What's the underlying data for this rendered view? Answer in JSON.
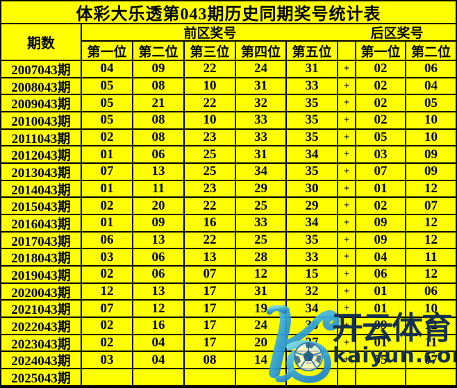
{
  "title": "体彩大乐透第043期历史同期奖号统计表",
  "colors": {
    "background": "#ffff00",
    "grid_border": "#000000",
    "text": "#000000",
    "watermark_navy": "#16314f",
    "watermark_blue_light": "#6fd4f0",
    "watermark_blue_dark": "#1f86d2"
  },
  "table": {
    "period_header": "期数",
    "front_zone_header": "前区奖号",
    "back_zone_header": "后区奖号",
    "front_position_headers": [
      "第一位",
      "第二位",
      "第三位",
      "第四位",
      "第五位"
    ],
    "back_position_headers": [
      "第一位",
      "第二位"
    ],
    "rows": [
      {
        "period": "2007043期",
        "front": [
          "04",
          "09",
          "22",
          "24",
          "31"
        ],
        "plus": "+",
        "back": [
          "02",
          "06"
        ]
      },
      {
        "period": "2008043期",
        "front": [
          "05",
          "08",
          "10",
          "31",
          "33"
        ],
        "plus": "+",
        "back": [
          "02",
          "04"
        ]
      },
      {
        "period": "2009043期",
        "front": [
          "05",
          "21",
          "22",
          "32",
          "35"
        ],
        "plus": "+",
        "back": [
          "02",
          "05"
        ]
      },
      {
        "period": "2010043期",
        "front": [
          "05",
          "08",
          "10",
          "33",
          "35"
        ],
        "plus": "+",
        "back": [
          "02",
          "10"
        ]
      },
      {
        "period": "2011043期",
        "front": [
          "02",
          "08",
          "23",
          "33",
          "35"
        ],
        "plus": "+",
        "back": [
          "05",
          "10"
        ]
      },
      {
        "period": "2012043期",
        "front": [
          "01",
          "06",
          "25",
          "31",
          "34"
        ],
        "plus": "+",
        "back": [
          "03",
          "09"
        ]
      },
      {
        "period": "2013043期",
        "front": [
          "07",
          "13",
          "25",
          "34",
          "35"
        ],
        "plus": "+",
        "back": [
          "07",
          "09"
        ]
      },
      {
        "period": "2014043期",
        "front": [
          "01",
          "11",
          "23",
          "29",
          "30"
        ],
        "plus": "+",
        "back": [
          "01",
          "12"
        ]
      },
      {
        "period": "2015043期",
        "front": [
          "02",
          "20",
          "22",
          "25",
          "29"
        ],
        "plus": "+",
        "back": [
          "02",
          "07"
        ]
      },
      {
        "period": "2016043期",
        "front": [
          "01",
          "09",
          "16",
          "33",
          "34"
        ],
        "plus": "+",
        "back": [
          "09",
          "12"
        ]
      },
      {
        "period": "2017043期",
        "front": [
          "06",
          "13",
          "22",
          "25",
          "35"
        ],
        "plus": "+",
        "back": [
          "09",
          "12"
        ]
      },
      {
        "period": "2018043期",
        "front": [
          "03",
          "06",
          "13",
          "28",
          "33"
        ],
        "plus": "+",
        "back": [
          "04",
          "11"
        ]
      },
      {
        "period": "2019043期",
        "front": [
          "02",
          "06",
          "07",
          "12",
          "15"
        ],
        "plus": "+",
        "back": [
          "06",
          "12"
        ]
      },
      {
        "period": "2020043期",
        "front": [
          "12",
          "13",
          "17",
          "31",
          "32"
        ],
        "plus": "+",
        "back": [
          "01",
          "06"
        ]
      },
      {
        "period": "2021043期",
        "front": [
          "07",
          "12",
          "17",
          "19",
          "34"
        ],
        "plus": "+",
        "back": [
          "01",
          "10"
        ]
      },
      {
        "period": "2022043期",
        "front": [
          "02",
          "16",
          "17",
          "24",
          "30"
        ],
        "plus": "+",
        "back": [
          "09",
          "12"
        ]
      },
      {
        "period": "2023043期",
        "front": [
          "02",
          "04",
          "17",
          "20",
          "27"
        ],
        "plus": "+",
        "back": [
          "01",
          "11"
        ]
      },
      {
        "period": "2024043期",
        "front": [
          "03",
          "04",
          "08",
          "14",
          "27"
        ],
        "plus": "+",
        "back": [
          "05",
          "07"
        ]
      },
      {
        "period": "2025043期",
        "front": [
          "",
          "",
          "",
          "",
          ""
        ],
        "plus": "",
        "back": [
          "",
          ""
        ]
      }
    ]
  },
  "watermark": {
    "logo_letter": "K",
    "brand_name": "开云体育",
    "domain": "kaiyun.com"
  }
}
